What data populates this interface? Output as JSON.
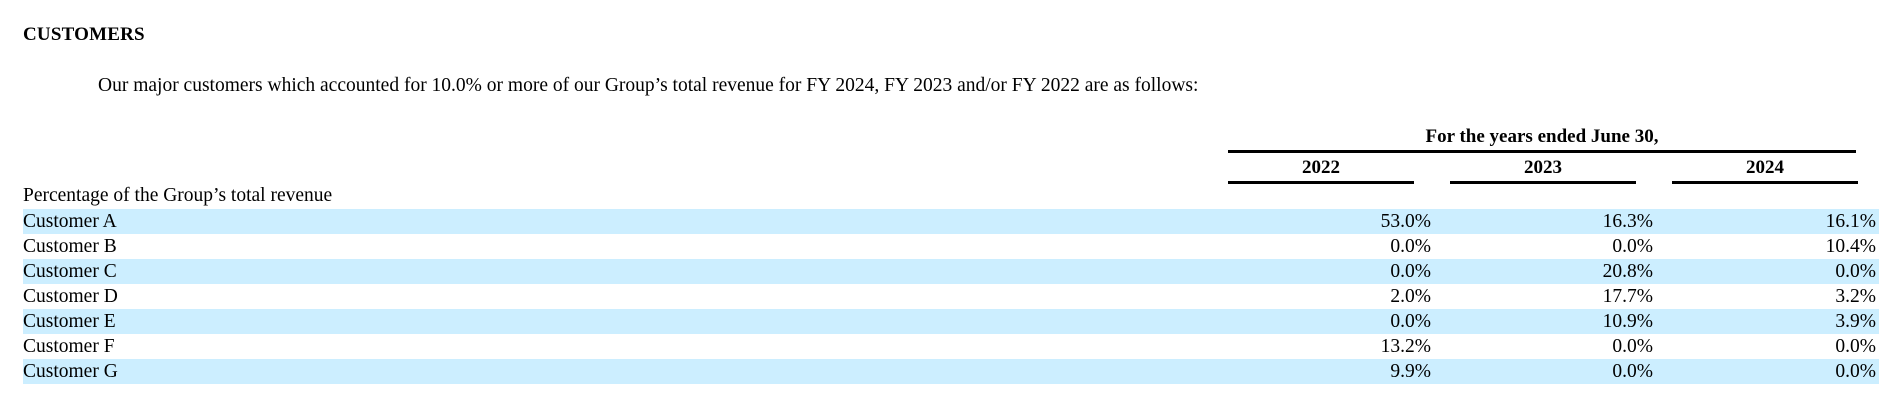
{
  "section": {
    "heading": "CUSTOMERS",
    "intro": "Our major customers which accounted for 10.0% or more of our Group’s total revenue for FY 2024, FY 2023 and/or FY 2022 are as follows:"
  },
  "table": {
    "period_header": "For the years ended June 30,",
    "years": [
      "2022",
      "2023",
      "2024"
    ],
    "row_title": "Percentage of the Group’s total revenue",
    "shade_color": "#cceeff",
    "rows": [
      {
        "label": "Customer A",
        "values": [
          "53.0%",
          "16.3%",
          "16.1%"
        ]
      },
      {
        "label": "Customer B",
        "values": [
          "0.0%",
          "0.0%",
          "10.4%"
        ]
      },
      {
        "label": "Customer C",
        "values": [
          "0.0%",
          "20.8%",
          "0.0%"
        ]
      },
      {
        "label": "Customer D",
        "values": [
          "2.0%",
          "17.7%",
          "3.2%"
        ]
      },
      {
        "label": "Customer E",
        "values": [
          "0.0%",
          "10.9%",
          "3.9%"
        ]
      },
      {
        "label": "Customer F",
        "values": [
          "13.2%",
          "0.0%",
          "0.0%"
        ]
      },
      {
        "label": "Customer G",
        "values": [
          "9.9%",
          "0.0%",
          "0.0%"
        ]
      }
    ]
  }
}
